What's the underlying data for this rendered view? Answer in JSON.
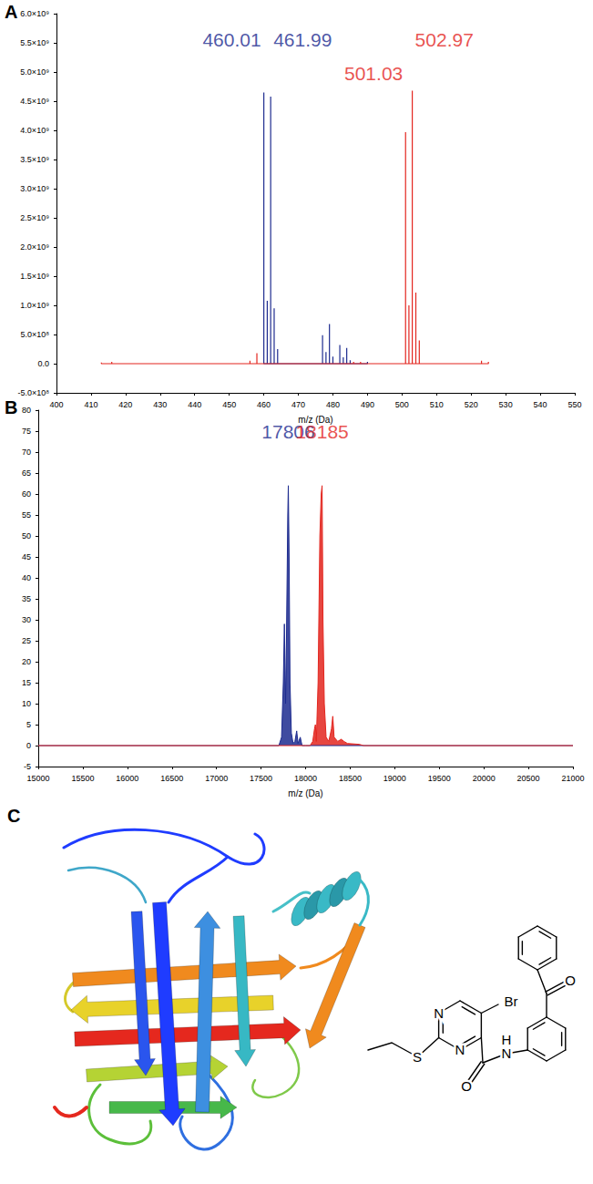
{
  "panel_labels": [
    "A",
    "B",
    "C"
  ],
  "chart_data": [
    {
      "type": "bar",
      "x_label": "m/z (Da)",
      "xlim": [
        400,
        550
      ],
      "xticks": [
        400,
        410,
        420,
        430,
        440,
        450,
        460,
        470,
        480,
        490,
        500,
        510,
        520,
        530,
        540,
        550
      ],
      "ylim": [
        -500000000,
        6000000000
      ],
      "yticks": [
        {
          "value": -500000000,
          "label": "-5.0×10⁸"
        },
        {
          "value": 0,
          "label": "0.0"
        },
        {
          "value": 500000000,
          "label": "5.0×10⁸"
        },
        {
          "value": 1000000000,
          "label": "1.0×10⁹"
        },
        {
          "value": 1500000000,
          "label": "1.5×10⁹"
        },
        {
          "value": 2000000000,
          "label": "2.0×10⁹"
        },
        {
          "value": 2500000000,
          "label": "2.5×10⁹"
        },
        {
          "value": 3000000000,
          "label": "3.0×10⁹"
        },
        {
          "value": 3500000000,
          "label": "3.5×10⁹"
        },
        {
          "value": 4000000000,
          "label": "4.0×10⁹"
        },
        {
          "value": 4500000000,
          "label": "4.5×10⁹"
        },
        {
          "value": 5000000000,
          "label": "5.0×10⁹"
        },
        {
          "value": 5500000000,
          "label": "5.5×10⁹"
        },
        {
          "value": 6000000000,
          "label": "6.0×10⁹"
        }
      ],
      "grid": false,
      "series": [
        {
          "color": "#1d2b8f",
          "x": [
            460.01,
            461.0,
            461.99,
            463.0,
            464.0,
            477.0,
            478.0,
            479.0,
            480.0,
            482.0,
            483.0,
            484.0,
            485.0,
            490.0
          ],
          "values": [
            4650000000,
            1080000000,
            4580000000,
            950000000,
            250000000,
            490000000,
            200000000,
            680000000,
            120000000,
            320000000,
            110000000,
            270000000,
            60000000,
            30000000
          ]
        },
        {
          "color": "#e3261f",
          "x": [
            413.0,
            416.0,
            456.0,
            458.0,
            486.0,
            488.0,
            501.03,
            502.0,
            502.97,
            504.0,
            505.0,
            523.0,
            525.0
          ],
          "values": [
            20000000,
            30000000,
            50000000,
            180000000,
            30000000,
            30000000,
            3970000000,
            1000000000,
            4680000000,
            1220000000,
            400000000,
            50000000,
            30000000
          ]
        }
      ],
      "annotations": [
        {
          "text": "460.01",
          "x": 460.01,
          "y": 5550000000,
          "color": "#1d2b8f"
        },
        {
          "text": "461.99",
          "x": 461.99,
          "y": 5550000000,
          "color": "#1d2b8f"
        },
        {
          "text": "501.03",
          "x": 501.03,
          "y": 4980000000,
          "color": "#e3261f"
        },
        {
          "text": "502.97",
          "x": 502.97,
          "y": 5550000000,
          "color": "#e3261f"
        }
      ]
    },
    {
      "type": "line",
      "x_label": "m/z (Da)",
      "xlim": [
        15000,
        21000
      ],
      "xticks": [
        15000,
        15500,
        16000,
        16500,
        17000,
        17500,
        18000,
        18500,
        19000,
        19500,
        20000,
        20500,
        21000
      ],
      "ylim": [
        -5,
        80
      ],
      "yticks": [
        -5,
        0,
        5,
        10,
        15,
        20,
        25,
        30,
        35,
        40,
        45,
        50,
        55,
        60,
        65,
        70,
        75,
        80
      ],
      "grid": false,
      "series": [
        {
          "color": "#1d2b8f",
          "x": [
            15000,
            17700,
            17730,
            17750,
            17762,
            17775,
            17785,
            17800,
            17806,
            17815,
            17825,
            17840,
            17860,
            17880,
            17900,
            17915,
            17940,
            17960,
            18000,
            21000
          ],
          "values": [
            0,
            0,
            2,
            15,
            29,
            10,
            25,
            55,
            62,
            45,
            15,
            3,
            0.5,
            1,
            3.5,
            0.5,
            2,
            0,
            0,
            0
          ]
        },
        {
          "color": "#e3261f",
          "x": [
            15000,
            18050,
            18080,
            18100,
            18110,
            18120,
            18140,
            18160,
            18175,
            18185,
            18195,
            18210,
            18230,
            18260,
            18290,
            18305,
            18320,
            18360,
            18400,
            18430,
            18470,
            18600,
            18650,
            21000
          ],
          "values": [
            0,
            0,
            1,
            4,
            5,
            1,
            15,
            50,
            60,
            62,
            30,
            10,
            2,
            1,
            4,
            7,
            2,
            1,
            1.5,
            1,
            0.5,
            0.3,
            0,
            0
          ]
        }
      ],
      "annotations": [
        {
          "text": "17806",
          "x": 17806,
          "y": 75,
          "color": "#1d2b8f"
        },
        {
          "text": "18185",
          "x": 18185,
          "y": 75,
          "color": "#e3261f"
        }
      ]
    }
  ],
  "panel_c": {
    "structure_labels": [
      "N",
      "N",
      "Br",
      "S",
      "O",
      "N",
      "H",
      "O"
    ]
  }
}
